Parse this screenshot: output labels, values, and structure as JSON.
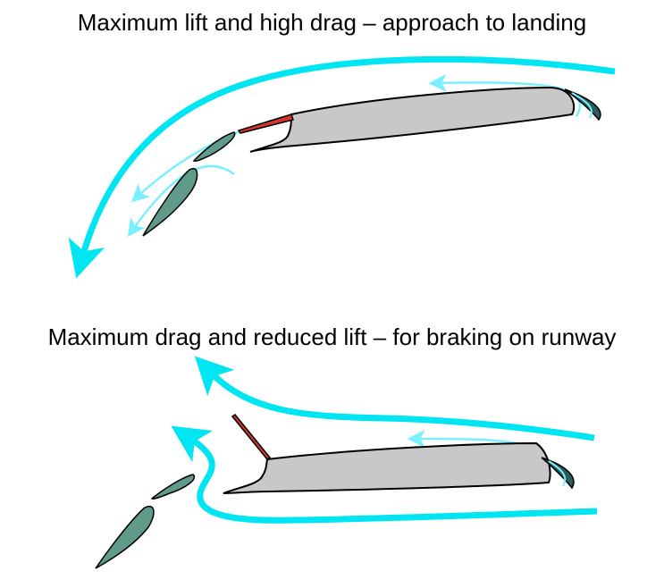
{
  "diagrams": [
    {
      "title": "Maximum lift and high drag – approach to landing"
    },
    {
      "title": "Maximum drag and reduced lift – for braking on runway"
    }
  ],
  "colors": {
    "airflow": "#00e5f2",
    "airflow_light": "#7af0ff",
    "wing": "#c8c8c8",
    "flap": "#5f9a8a",
    "spoiler": "#d8362a",
    "slat": "#2a5e5b",
    "outline": "#000000"
  }
}
